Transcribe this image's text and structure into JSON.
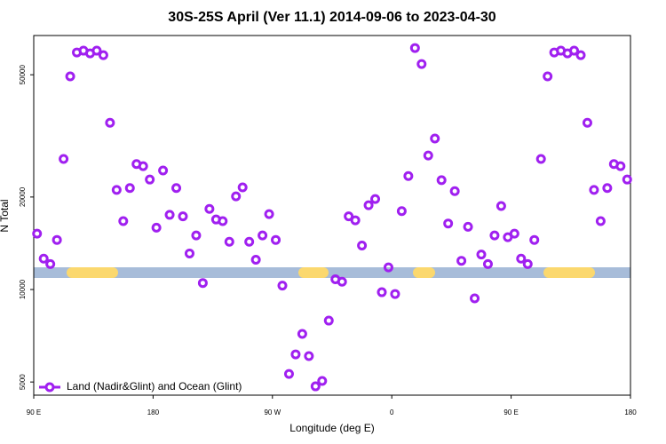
{
  "chart_data": {
    "type": "scatter",
    "title": "30S-25S April (Ver 11.1)   2014-09-06 to 2023-04-30",
    "x_label": "Longitude (deg E)",
    "y_label": "N Total",
    "x": [
      92.5,
      97.5,
      102.5,
      107.5,
      112.5,
      117.5,
      122.5,
      127.5,
      132.5,
      137.5,
      142.5,
      147.5,
      152.5,
      157.5,
      162.5,
      167.5,
      172.5,
      177.5,
      182.5,
      187.5,
      192.5,
      197.5,
      202.5,
      207.5,
      212.5,
      217.5,
      222.5,
      227.5,
      232.5,
      237.5,
      242.5,
      247.5,
      252.5,
      257.5,
      262.5,
      267.5,
      272.5,
      277.5,
      282.5,
      287.5,
      292.5,
      297.5,
      302.5,
      307.5,
      312.5,
      317.5,
      322.5,
      327.5,
      332.5,
      337.5,
      342.5,
      347.5,
      352.5,
      357.5,
      362.5,
      367.5,
      372.5,
      377.5,
      382.5,
      387.5,
      392.5,
      397.5,
      402.5,
      407.5,
      412.5,
      417.5,
      422.5,
      427.5,
      432.5,
      437.5,
      442.5,
      447.5,
      452.5,
      457.5,
      462.5,
      467.5,
      472.5,
      477.5,
      482.5,
      487.5,
      492.5,
      497.5,
      502.5,
      507.5,
      512.5,
      517.5,
      522.5,
      527.5,
      532.5,
      537.5
    ],
    "series": [
      {
        "name": "Land (Nadir&Glint) and Ocean (Glint)",
        "color": "#a020f0",
        "values": [
          15200,
          12600,
          12100,
          14500,
          26600,
          49400,
          59100,
          59900,
          58700,
          59900,
          57900,
          34900,
          21100,
          16700,
          21400,
          25600,
          25200,
          22800,
          15900,
          24400,
          17500,
          21400,
          17300,
          13100,
          15000,
          10500,
          18300,
          16900,
          16700,
          14300,
          20100,
          21500,
          14300,
          12500,
          15000,
          17600,
          14500,
          10300,
          5310,
          6150,
          7170,
          6070,
          4840,
          5040,
          7920,
          10800,
          10600,
          17300,
          16800,
          13900,
          18800,
          19700,
          9800,
          11800,
          9670,
          18000,
          23400,
          61100,
          54200,
          27300,
          31000,
          22700,
          16400,
          20900,
          12400,
          16000,
          9360,
          13000,
          12100,
          15000,
          18700,
          14800,
          15200,
          12600,
          12100,
          14500,
          26600,
          49400,
          59100,
          59900,
          58700,
          59900,
          57900,
          34900,
          21100,
          16700,
          21400,
          25600,
          25200,
          22800
        ]
      }
    ],
    "xlim": [
      90,
      540
    ],
    "xticks": [
      {
        "value": 90,
        "label": "90 E"
      },
      180,
      {
        "value": 270,
        "label": "90 W"
      },
      {
        "value": 360,
        "label": "0"
      },
      {
        "value": 450,
        "label": "90 E"
      },
      {
        "value": 540,
        "label": "180"
      }
    ],
    "ylim": [
      4530,
      67100
    ],
    "yscale": "log",
    "yticks": [
      5000,
      10000,
      20000,
      50000
    ],
    "legend": "bottom-left"
  }
}
